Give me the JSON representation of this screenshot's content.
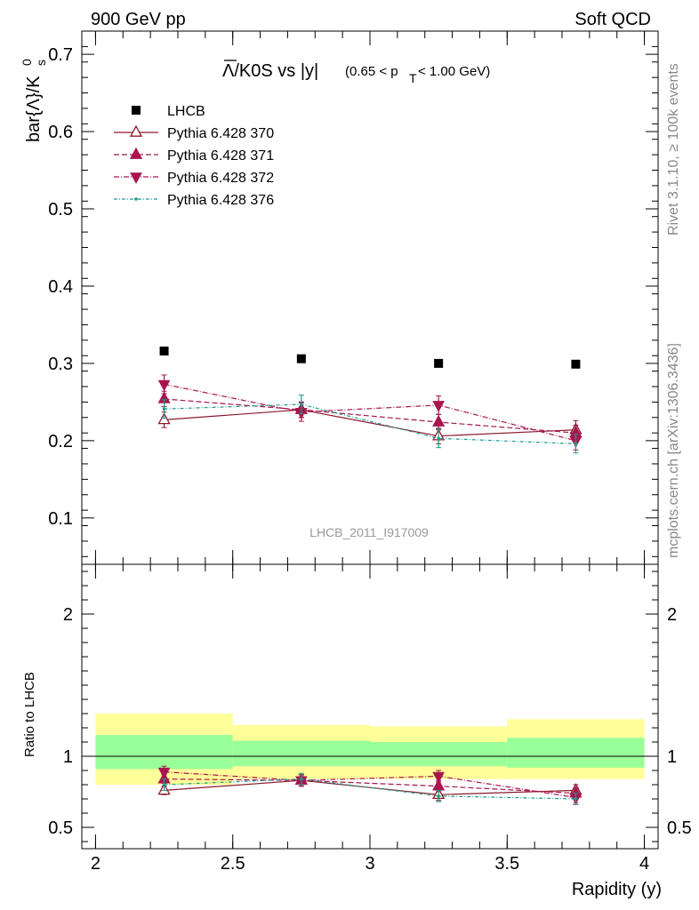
{
  "header": {
    "left": "900 GeV pp",
    "right": "Soft QCD"
  },
  "side_text": {
    "rivet": "Rivet 3.1.10, ≥ 100k events",
    "mcplots": "mcplots.cern.ch [arXiv:1306.3436]"
  },
  "plot_title": {
    "main": "Λ/K0S vs |y|",
    "cut": "(0.65 < p",
    "cut_sub": "T",
    "cut_end": " < 1.00 GeV)"
  },
  "analysis_id": "LHCB_2011_I917009",
  "colors": {
    "data": "#000000",
    "p370": "#8b1a2b",
    "p371": "#a8154f",
    "p372": "#a8154f",
    "p376": "#1e9a8a",
    "band_outer": "#ffff99",
    "band_inner": "#99ff99"
  },
  "chart_data": [
    {
      "type": "scatter",
      "panel": "main",
      "ylabel": "bar{Λ}/K",
      "ylabel_sup": "0",
      "ylabel_sub": "s",
      "xlim": [
        1.95,
        4.05
      ],
      "ylim": [
        0.04,
        0.73
      ],
      "yticks": [
        0.1,
        0.2,
        0.3,
        0.4,
        0.5,
        0.6,
        0.7
      ],
      "ytick_labels": [
        "0.1",
        "0.2",
        "0.3",
        "0.4",
        "0.5",
        "0.6",
        "0.7"
      ],
      "legend_position": "top-left",
      "series": [
        {
          "name": "LHCB",
          "key": "data",
          "marker": "square",
          "x": [
            2.25,
            2.75,
            3.25,
            3.75
          ],
          "y": [
            0.316,
            0.306,
            0.3,
            0.299
          ],
          "err": [
            0,
            0,
            0,
            0
          ]
        },
        {
          "name": "Pythia 6.428 370",
          "key": "p370",
          "marker": "triangle-up-open",
          "dash": "",
          "x": [
            2.25,
            2.75,
            3.25,
            3.75
          ],
          "y": [
            0.227,
            0.24,
            0.206,
            0.214
          ],
          "err": [
            0.01,
            0.01,
            0.01,
            0.012
          ]
        },
        {
          "name": "Pythia 6.428 371",
          "key": "p371",
          "marker": "triangle-up",
          "dash": "6,3",
          "x": [
            2.25,
            2.75,
            3.25,
            3.75
          ],
          "y": [
            0.254,
            0.24,
            0.224,
            0.21
          ],
          "err": [
            0.01,
            0.01,
            0.01,
            0.01
          ]
        },
        {
          "name": "Pythia 6.428 372",
          "key": "p372",
          "marker": "triangle-down",
          "dash": "6,2,1,2",
          "x": [
            2.25,
            2.75,
            3.25,
            3.75
          ],
          "y": [
            0.273,
            0.237,
            0.246,
            0.2
          ],
          "err": [
            0.012,
            0.012,
            0.012,
            0.012
          ]
        },
        {
          "name": "Pythia 6.428 376",
          "key": "p376",
          "marker": "dot",
          "dash": "4,2,1,2",
          "x": [
            2.25,
            2.75,
            3.25,
            3.75
          ],
          "y": [
            0.241,
            0.247,
            0.203,
            0.196
          ],
          "err": [
            0.012,
            0.012,
            0.012,
            0.012
          ]
        }
      ]
    },
    {
      "type": "scatter",
      "panel": "ratio",
      "xlabel": "Rapidity (y)",
      "ylabel": "Ratio to LHCB",
      "xlim": [
        1.95,
        4.05
      ],
      "ylim": [
        0.35,
        2.35
      ],
      "xticks": [
        2,
        2.5,
        3,
        3.5,
        4
      ],
      "xtick_labels": [
        "2",
        "2.5",
        "3",
        "3.5",
        "4"
      ],
      "yticks": [
        0.5,
        1,
        2
      ],
      "ytick_labels": [
        "0.5",
        "1",
        "2"
      ],
      "bands": [
        {
          "x0": 2.0,
          "x1": 2.5,
          "outer": [
            0.8,
            1.3
          ],
          "inner": [
            0.91,
            1.15
          ]
        },
        {
          "x0": 2.5,
          "x1": 3.0,
          "outer": [
            0.84,
            1.22
          ],
          "inner": [
            0.93,
            1.11
          ]
        },
        {
          "x0": 3.0,
          "x1": 3.5,
          "outer": [
            0.84,
            1.21
          ],
          "inner": [
            0.93,
            1.1
          ]
        },
        {
          "x0": 3.5,
          "x1": 4.0,
          "outer": [
            0.84,
            1.26
          ],
          "inner": [
            0.92,
            1.13
          ]
        }
      ],
      "series": [
        {
          "name": "Pythia 6.428 370",
          "key": "p370",
          "marker": "triangle-up-open",
          "dash": "",
          "x": [
            2.25,
            2.75,
            3.25,
            3.75
          ],
          "y": [
            0.76,
            0.83,
            0.73,
            0.76
          ],
          "err": [
            0.03,
            0.04,
            0.04,
            0.04
          ]
        },
        {
          "name": "Pythia 6.428 371",
          "key": "p371",
          "marker": "triangle-up",
          "dash": "6,3",
          "x": [
            2.25,
            2.75,
            3.25,
            3.75
          ],
          "y": [
            0.84,
            0.83,
            0.79,
            0.74
          ],
          "err": [
            0.03,
            0.04,
            0.04,
            0.04
          ]
        },
        {
          "name": "Pythia 6.428 372",
          "key": "p372",
          "marker": "triangle-down",
          "dash": "6,2,1,2",
          "x": [
            2.25,
            2.75,
            3.25,
            3.75
          ],
          "y": [
            0.89,
            0.83,
            0.86,
            0.71
          ],
          "err": [
            0.04,
            0.04,
            0.04,
            0.04
          ]
        },
        {
          "name": "Pythia 6.428 376",
          "key": "p376",
          "marker": "dot",
          "dash": "4,2,1,2",
          "x": [
            2.25,
            2.75,
            3.25,
            3.75
          ],
          "y": [
            0.8,
            0.84,
            0.72,
            0.7
          ],
          "err": [
            0.04,
            0.04,
            0.04,
            0.04
          ]
        }
      ]
    }
  ]
}
